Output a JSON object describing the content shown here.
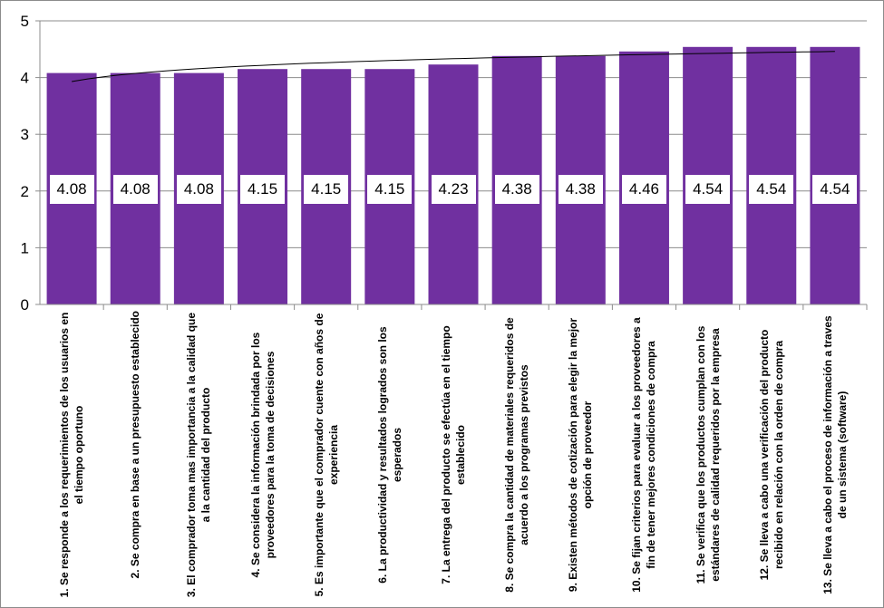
{
  "chart_data": {
    "type": "bar",
    "title": "",
    "xlabel": "",
    "ylabel": "",
    "ylim": [
      0,
      5
    ],
    "yticks": [
      "0",
      "1",
      "2",
      "3",
      "4",
      "5"
    ],
    "grid": true,
    "legend": "none",
    "bar_color": "#7030a0",
    "categories": [
      "1. Se responde a los requerimientos de los usuarios en el tiempo oportuno",
      "2. Se compra en base a un presupuesto establecido",
      "3. El comprador toma mas importancia a la calidad que a la cantidad del producto",
      "4. Se considera la información brindada por los proveedores para la toma de decisiones",
      "5. Es importante que el comprador cuente con años de experiencia",
      "6. La productividad y resultados logrados son los esperados",
      "7. La entrega del producto se efectúa en el tiempo establecido",
      "8. Se compra la cantidad de materiales requeridos de acuerdo a los programas previstos",
      "9. Existen métodos de cotización para elegir la mejor opción de proveedor",
      "10. Se fijan criterios para evaluar a los proveedores a fin de tener mejores condiciones de compra",
      "11. Se verifica que los productos cumplan con los estándares de calidad requeridos por la empresa",
      "12. Se lleva a cabo una verificación del producto recibido en relación con la orden de compra",
      "13. Se lleva a cabo el proceso de información a traves de un sistema (software)"
    ],
    "values": [
      4.08,
      4.08,
      4.08,
      4.15,
      4.15,
      4.15,
      4.23,
      4.38,
      4.38,
      4.46,
      4.54,
      4.54,
      4.54
    ],
    "data_labels": [
      "4.08",
      "4.08",
      "4.08",
      "4.15",
      "4.15",
      "4.15",
      "4.23",
      "4.38",
      "4.38",
      "4.46",
      "4.54",
      "4.54",
      "4.54"
    ],
    "trendline": {
      "type": "logarithmic",
      "color": "#000000",
      "start": 3.93,
      "end": 4.46
    }
  }
}
